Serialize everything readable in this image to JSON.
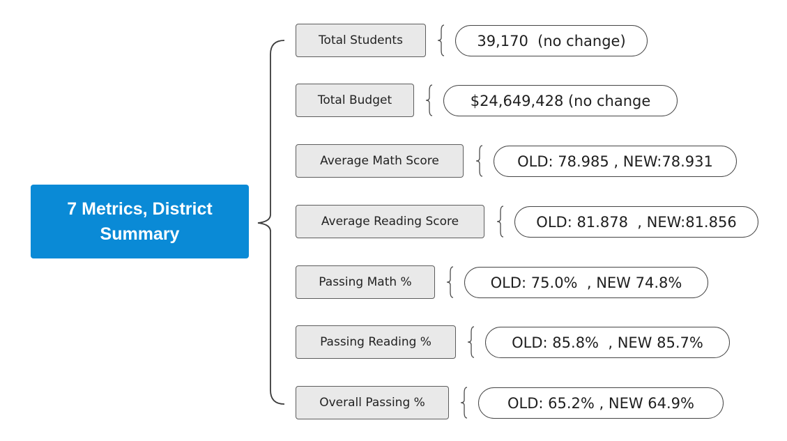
{
  "root": {
    "label": "7 Metrics, District Summary"
  },
  "metrics": [
    {
      "label": "Total Students",
      "value": "39,170  (no change)"
    },
    {
      "label": "Total Budget",
      "value": "$24,649,428 (no change"
    },
    {
      "label": "Average Math Score",
      "value": "OLD: 78.985 , NEW:78.931"
    },
    {
      "label": "Average Reading Score",
      "value": "OLD: 81.878  , NEW:81.856"
    },
    {
      "label": "Passing Math %",
      "value": "OLD: 75.0%  , NEW 74.8%"
    },
    {
      "label": "Passing Reading %",
      "value": "OLD: 85.8%  , NEW 85.7%"
    },
    {
      "label": "Overall Passing %",
      "value": "OLD: 65.2% , NEW 64.9%"
    }
  ],
  "colors": {
    "root_fill": "#0a8ad6",
    "metric_fill": "#e9e9e9",
    "border": "#5c5c5c",
    "connector": "#3a3a3a"
  }
}
